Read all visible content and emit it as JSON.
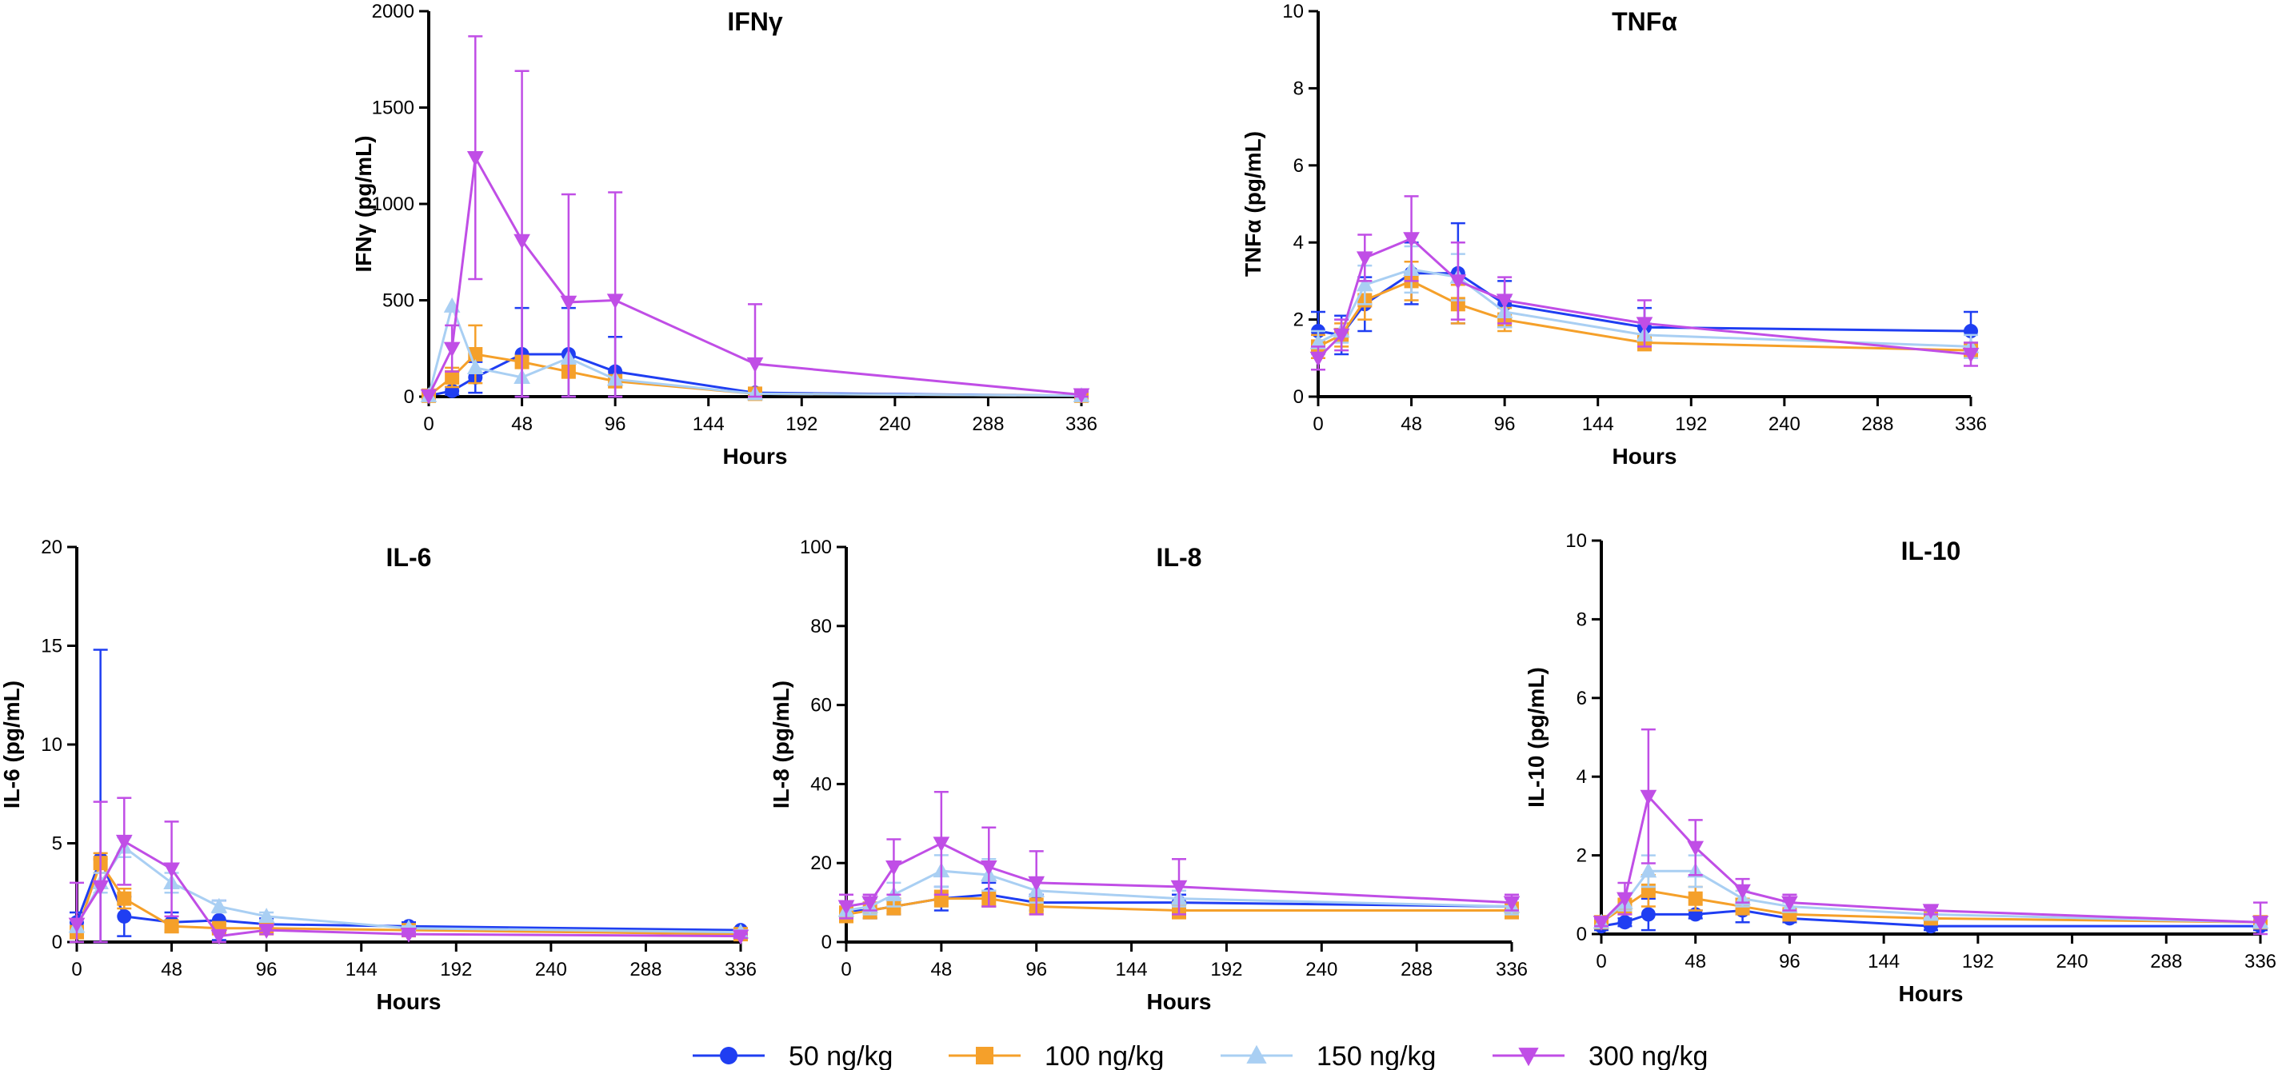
{
  "chart_data": [
    {
      "type": "line",
      "title": "IFNγ",
      "xlabel": "Hours",
      "ylabel": "IFNγ (pg/mL)",
      "xlim": [
        0,
        336
      ],
      "ylim": [
        0,
        2000
      ],
      "xticks": [
        0,
        48,
        96,
        144,
        192,
        240,
        288,
        336
      ],
      "yticks": [
        0,
        500,
        1000,
        1500,
        2000
      ],
      "series": [
        {
          "name": "50 ng/kg",
          "x": [
            0,
            12,
            24,
            48,
            72,
            96,
            168,
            336
          ],
          "y": [
            5,
            30,
            100,
            220,
            220,
            130,
            20,
            5
          ],
          "err": [
            0,
            20,
            80,
            240,
            240,
            180,
            10,
            5
          ]
        },
        {
          "name": "100 ng/kg",
          "x": [
            0,
            12,
            24,
            48,
            72,
            96,
            168,
            336
          ],
          "y": [
            5,
            100,
            220,
            180,
            130,
            80,
            15,
            5
          ],
          "err": [
            0,
            50,
            150,
            0,
            0,
            0,
            0,
            0
          ]
        },
        {
          "name": "150 ng/kg",
          "x": [
            0,
            12,
            24,
            48,
            72,
            96,
            168,
            336
          ],
          "y": [
            5,
            470,
            150,
            100,
            200,
            90,
            15,
            5
          ],
          "err": [
            0,
            0,
            0,
            0,
            0,
            0,
            0,
            0
          ]
        },
        {
          "name": "300 ng/kg",
          "x": [
            0,
            12,
            24,
            48,
            72,
            96,
            168,
            336
          ],
          "y": [
            5,
            250,
            1240,
            810,
            490,
            500,
            170,
            10
          ],
          "err": [
            0,
            120,
            630,
            880,
            560,
            560,
            310,
            15
          ]
        }
      ]
    },
    {
      "type": "line",
      "title": "TNFα",
      "xlabel": "Hours",
      "ylabel": "TNFα (pg/mL)",
      "xlim": [
        0,
        336
      ],
      "ylim": [
        0,
        10
      ],
      "xticks": [
        0,
        48,
        96,
        144,
        192,
        240,
        288,
        336
      ],
      "yticks": [
        0,
        2,
        4,
        6,
        8,
        10
      ],
      "series": [
        {
          "name": "50 ng/kg",
          "x": [
            0,
            12,
            24,
            48,
            72,
            96,
            168,
            336
          ],
          "y": [
            1.7,
            1.6,
            2.4,
            3.2,
            3.2,
            2.4,
            1.8,
            1.7
          ],
          "err": [
            0.5,
            0.5,
            0.7,
            0.8,
            1.3,
            0.6,
            0.5,
            0.5
          ]
        },
        {
          "name": "100 ng/kg",
          "x": [
            0,
            12,
            24,
            48,
            72,
            96,
            168,
            336
          ],
          "y": [
            1.3,
            1.6,
            2.5,
            3.0,
            2.4,
            2.0,
            1.4,
            1.2
          ],
          "err": [
            0.3,
            0.3,
            0.5,
            0.5,
            0.5,
            0.3,
            0.2,
            0.2
          ]
        },
        {
          "name": "150 ng/kg",
          "x": [
            0,
            12,
            24,
            48,
            72,
            96,
            168,
            336
          ],
          "y": [
            1.4,
            1.7,
            2.9,
            3.3,
            3.1,
            2.2,
            1.6,
            1.3
          ],
          "err": [
            0.3,
            0.3,
            0.5,
            0.6,
            0.6,
            0.4,
            0.3,
            0.3
          ]
        },
        {
          "name": "300 ng/kg",
          "x": [
            0,
            12,
            24,
            48,
            72,
            96,
            168,
            336
          ],
          "y": [
            1.0,
            1.6,
            3.6,
            4.1,
            3.0,
            2.5,
            1.9,
            1.1
          ],
          "err": [
            0.3,
            0.4,
            0.6,
            1.1,
            1.0,
            0.6,
            0.6,
            0.3
          ]
        }
      ]
    },
    {
      "type": "line",
      "title": "IL-6",
      "xlabel": "Hours",
      "ylabel": "IL-6 (pg/mL)",
      "xlim": [
        0,
        336
      ],
      "ylim": [
        0,
        20
      ],
      "xticks": [
        0,
        48,
        96,
        144,
        192,
        240,
        288,
        336
      ],
      "yticks": [
        0,
        5,
        10,
        15,
        20
      ],
      "series": [
        {
          "name": "50 ng/kg",
          "x": [
            0,
            12,
            24,
            48,
            72,
            96,
            168,
            336
          ],
          "y": [
            1.0,
            4.2,
            1.3,
            1.0,
            1.1,
            0.9,
            0.8,
            0.6
          ],
          "err": [
            0.5,
            10.6,
            1.0,
            0.5,
            1.0,
            0.3,
            0.2,
            0.1
          ]
        },
        {
          "name": "100 ng/kg",
          "x": [
            0,
            12,
            24,
            48,
            72,
            96,
            168,
            336
          ],
          "y": [
            0.5,
            4.0,
            2.2,
            0.8,
            0.7,
            0.7,
            0.6,
            0.4
          ],
          "err": [
            0.2,
            0.5,
            0.5,
            0.2,
            0.2,
            0.2,
            0.1,
            0.1
          ]
        },
        {
          "name": "150 ng/kg",
          "x": [
            0,
            12,
            24,
            48,
            72,
            96,
            168,
            336
          ],
          "y": [
            0.8,
            3.0,
            4.8,
            3.0,
            1.8,
            1.3,
            0.7,
            0.5
          ],
          "err": [
            0.3,
            0.5,
            0.5,
            0.5,
            0.3,
            0.2,
            0.1,
            0.1
          ]
        },
        {
          "name": "300 ng/kg",
          "x": [
            0,
            12,
            24,
            48,
            72,
            96,
            168,
            336
          ],
          "y": [
            0.9,
            2.8,
            5.1,
            3.7,
            0.3,
            0.6,
            0.4,
            0.3
          ],
          "err": [
            2.1,
            4.3,
            2.2,
            2.4,
            0.3,
            0.2,
            0.1,
            0.1
          ]
        }
      ]
    },
    {
      "type": "line",
      "title": "IL-8",
      "xlabel": "Hours",
      "ylabel": "IL-8 (pg/mL)",
      "xlim": [
        0,
        336
      ],
      "ylim": [
        0,
        100
      ],
      "xticks": [
        0,
        48,
        96,
        144,
        192,
        240,
        288,
        336
      ],
      "yticks": [
        0,
        20,
        40,
        60,
        80,
        100
      ],
      "series": [
        {
          "name": "50 ng/kg",
          "x": [
            0,
            12,
            24,
            48,
            72,
            96,
            168,
            336
          ],
          "y": [
            8,
            8,
            9,
            11,
            12,
            10,
            10,
            9
          ],
          "err": [
            2,
            2,
            2,
            3,
            3,
            2,
            2,
            2
          ]
        },
        {
          "name": "100 ng/kg",
          "x": [
            0,
            12,
            24,
            48,
            72,
            96,
            168,
            336
          ],
          "y": [
            7,
            8,
            9,
            11,
            11,
            9,
            8,
            8
          ],
          "err": [
            2,
            2,
            2,
            2,
            2,
            2,
            2,
            2
          ]
        },
        {
          "name": "150 ng/kg",
          "x": [
            0,
            12,
            24,
            48,
            72,
            96,
            168,
            336
          ],
          "y": [
            8,
            9,
            12,
            18,
            17,
            13,
            11,
            9
          ],
          "err": [
            2,
            2,
            3,
            4,
            4,
            3,
            2,
            2
          ]
        },
        {
          "name": "300 ng/kg",
          "x": [
            0,
            12,
            24,
            48,
            72,
            96,
            168,
            336
          ],
          "y": [
            9,
            10,
            19,
            25,
            19,
            15,
            14,
            10
          ],
          "err": [
            3,
            2,
            7,
            13,
            10,
            8,
            7,
            2
          ]
        }
      ]
    },
    {
      "type": "line",
      "title": "IL-10",
      "xlabel": "Hours",
      "ylabel": "IL-10 (pg/mL)",
      "xlim": [
        0,
        336
      ],
      "ylim": [
        0,
        10
      ],
      "xticks": [
        0,
        48,
        96,
        144,
        192,
        240,
        288,
        336
      ],
      "yticks": [
        0,
        2,
        4,
        6,
        8,
        10
      ],
      "series": [
        {
          "name": "50 ng/kg",
          "x": [
            0,
            12,
            24,
            48,
            72,
            96,
            168,
            336
          ],
          "y": [
            0.2,
            0.3,
            0.5,
            0.5,
            0.6,
            0.4,
            0.2,
            0.2
          ],
          "err": [
            0.1,
            0.1,
            0.4,
            0.1,
            0.3,
            0.1,
            0.1,
            0.1
          ]
        },
        {
          "name": "100 ng/kg",
          "x": [
            0,
            12,
            24,
            48,
            72,
            96,
            168,
            336
          ],
          "y": [
            0.3,
            0.7,
            1.1,
            0.9,
            0.7,
            0.5,
            0.4,
            0.3
          ],
          "err": [
            0.1,
            0.2,
            0.4,
            0.3,
            0.2,
            0.1,
            0.1,
            0.1
          ]
        },
        {
          "name": "150 ng/kg",
          "x": [
            0,
            12,
            24,
            48,
            72,
            96,
            168,
            336
          ],
          "y": [
            0.3,
            0.8,
            1.6,
            1.6,
            0.9,
            0.7,
            0.5,
            0.3
          ],
          "err": [
            0.1,
            0.2,
            0.4,
            0.4,
            0.2,
            0.1,
            0.1,
            0.1
          ]
        },
        {
          "name": "300 ng/kg",
          "x": [
            0,
            12,
            24,
            48,
            72,
            96,
            168,
            336
          ],
          "y": [
            0.3,
            0.9,
            3.5,
            2.2,
            1.1,
            0.8,
            0.6,
            0.3
          ],
          "err": [
            0.1,
            0.4,
            1.7,
            0.7,
            0.3,
            0.2,
            0.1,
            0.5
          ]
        }
      ]
    }
  ],
  "legend": {
    "items": [
      {
        "label": "50 ng/kg",
        "color": "#1f3ef2",
        "marker": "circle"
      },
      {
        "label": "100 ng/kg",
        "color": "#f5a02a",
        "marker": "square"
      },
      {
        "label": "150 ng/kg",
        "color": "#a9cff3",
        "marker": "triangle-up"
      },
      {
        "label": "300 ng/kg",
        "color": "#c04ee6",
        "marker": "triangle-down"
      }
    ]
  }
}
